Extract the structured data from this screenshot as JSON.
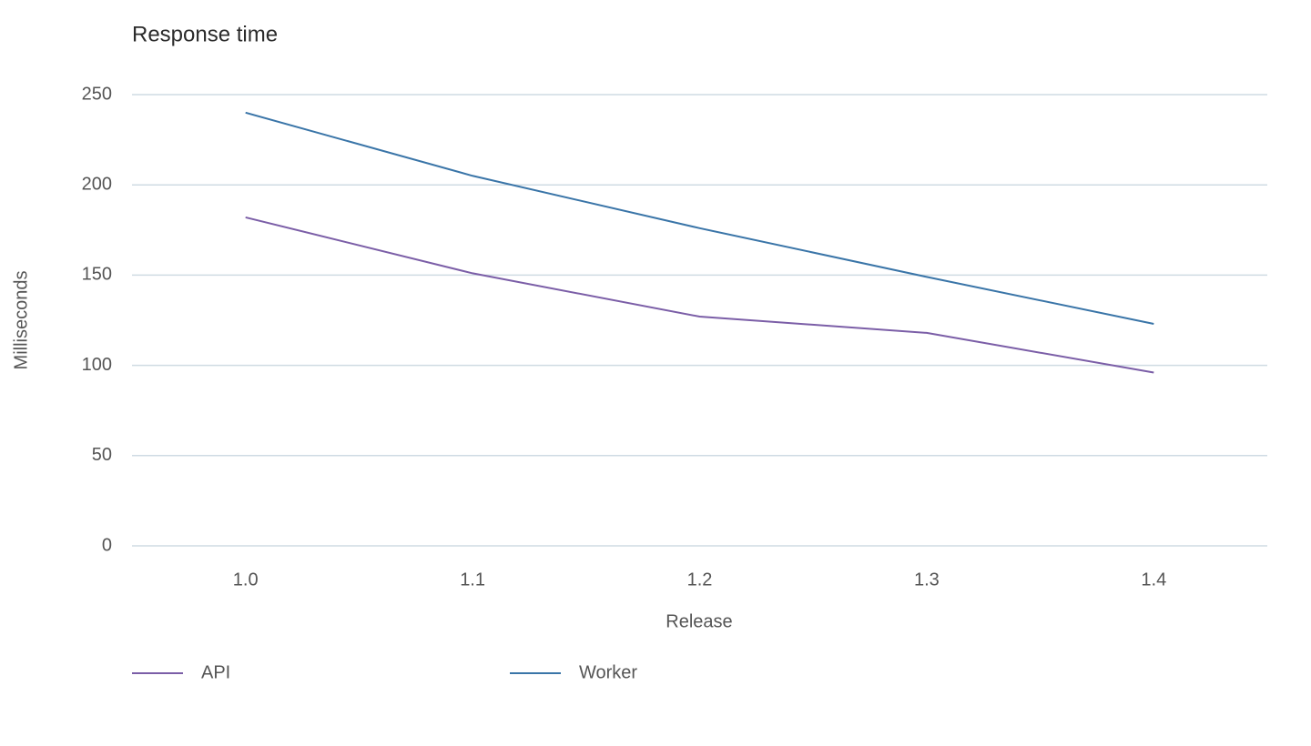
{
  "chart_data": {
    "type": "line",
    "title": "Response time",
    "x_label": "Release",
    "y_label": "Milliseconds",
    "categories": [
      "1.0",
      "1.1",
      "1.2",
      "1.3",
      "1.4"
    ],
    "series": [
      {
        "name": "API",
        "color": "#7b5ea7",
        "values": [
          182,
          151,
          127,
          118,
          96
        ]
      },
      {
        "name": "Worker",
        "color": "#3a75a8",
        "values": [
          240,
          205,
          176,
          149,
          123
        ]
      }
    ],
    "ylim": [
      0,
      250
    ],
    "yticks": [
      0,
      50,
      100,
      150,
      200,
      250
    ],
    "grid": true,
    "legend": "bottom"
  }
}
